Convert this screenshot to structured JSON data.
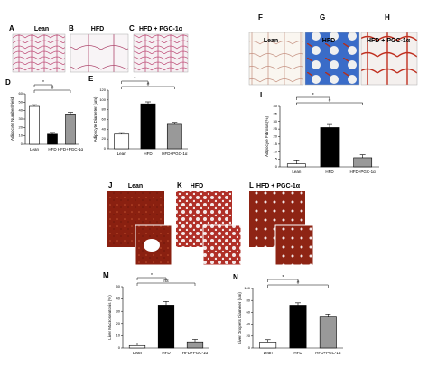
{
  "images": [
    {
      "label": "A",
      "title": "Lean"
    },
    {
      "label": "B",
      "title": "HFD"
    },
    {
      "label": "C",
      "title": "HFD + PGC-1α"
    },
    {
      "label": "F",
      "title": "Lean"
    },
    {
      "label": "G",
      "title": "HFD"
    },
    {
      "label": "H",
      "title": "HFD + PGC-1α"
    },
    {
      "label": "J",
      "title": "Lean"
    },
    {
      "label": "K",
      "title": "HFD"
    },
    {
      "label": "L",
      "title": "HFD + PGC-1α"
    }
  ],
  "chart_data": [
    {
      "type": "bar",
      "label": "D",
      "ylabel": "Adipocyte Number/Field",
      "categories": [
        "Lean",
        "HFD",
        "HFD+PGC-1α"
      ],
      "values": [
        45,
        12,
        35
      ],
      "errors": [
        2,
        2,
        3
      ],
      "colors": [
        "#ffffff",
        "#000000",
        "#999999"
      ],
      "ylim": [
        0,
        60
      ],
      "yticks": [
        0,
        10,
        20,
        30,
        40,
        50,
        60
      ],
      "annotations": [
        "*",
        "#"
      ]
    },
    {
      "type": "bar",
      "label": "E",
      "ylabel": "Adipocyte Diameter (um)",
      "categories": [
        "Lean",
        "HFD",
        "HFD+PGC-1α"
      ],
      "values": [
        30,
        92,
        50
      ],
      "errors": [
        3,
        4,
        4
      ],
      "colors": [
        "#ffffff",
        "#000000",
        "#999999"
      ],
      "ylim": [
        0,
        120
      ],
      "yticks": [
        0,
        20,
        40,
        60,
        80,
        100,
        120
      ],
      "annotations": [
        "*",
        "#"
      ]
    },
    {
      "type": "bar",
      "label": "I",
      "ylabel": "Adipocyte Fibrosis (%)",
      "categories": [
        "Lean",
        "HFD",
        "HFD+PGC-1α"
      ],
      "values": [
        2,
        26,
        6
      ],
      "errors": [
        2,
        2,
        2
      ],
      "colors": [
        "#ffffff",
        "#000000",
        "#999999"
      ],
      "ylim": [
        0,
        40
      ],
      "yticks": [
        0,
        5,
        10,
        15,
        20,
        25,
        30,
        35,
        40
      ],
      "annotations": [
        "*",
        "#"
      ]
    },
    {
      "type": "bar",
      "label": "M",
      "ylabel": "Liver Macrosteatosis (%)",
      "categories": [
        "Lean",
        "HFD",
        "HFD+PGC-1α"
      ],
      "values": [
        2,
        35,
        5
      ],
      "errors": [
        2,
        3,
        2
      ],
      "colors": [
        "#ffffff",
        "#000000",
        "#999999"
      ],
      "ylim": [
        0,
        50
      ],
      "yticks": [
        0,
        10,
        20,
        30,
        40,
        50
      ],
      "annotations": [
        "*",
        "ns"
      ]
    },
    {
      "type": "bar",
      "label": "N",
      "ylabel": "Liver Droplets Diameter (um)",
      "categories": [
        "Lean",
        "HFD",
        "HFD+PGC-1α"
      ],
      "values": [
        10,
        72,
        52
      ],
      "errors": [
        4,
        4,
        5
      ],
      "colors": [
        "#ffffff",
        "#000000",
        "#999999"
      ],
      "ylim": [
        0,
        100
      ],
      "yticks": [
        0,
        20,
        40,
        60,
        80,
        100
      ],
      "annotations": [
        "*",
        "#"
      ]
    }
  ]
}
